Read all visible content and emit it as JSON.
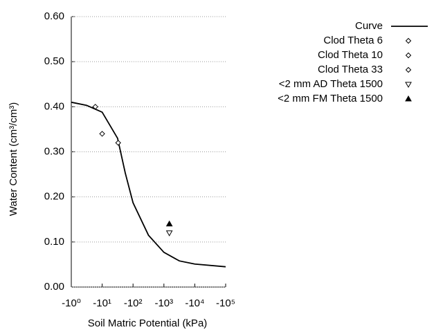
{
  "chart_data": {
    "type": "line",
    "xlabel": "Soil Matric Potential (kPa)",
    "ylabel": "Water Content (cm³/cm³)",
    "xscale": "log",
    "xlim": [
      -1,
      -100000
    ],
    "xticks": [
      {
        "value": -1,
        "label": "-10⁰"
      },
      {
        "value": -10,
        "label": "-10¹"
      },
      {
        "value": -100,
        "label": "-10²"
      },
      {
        "value": -1000,
        "label": "-10³"
      },
      {
        "value": -10000,
        "label": "-10⁴"
      },
      {
        "value": -100000,
        "label": "-10⁵"
      }
    ],
    "ylim": [
      0,
      0.6
    ],
    "yticks": [
      {
        "value": 0,
        "label": "0.00"
      },
      {
        "value": 0.1,
        "label": "0.10"
      },
      {
        "value": 0.2,
        "label": "0.20"
      },
      {
        "value": 0.3,
        "label": "0.30"
      },
      {
        "value": 0.4,
        "label": "0.40"
      },
      {
        "value": 0.5,
        "label": "0.50"
      },
      {
        "value": 0.6,
        "label": "0.60"
      }
    ],
    "grid": true,
    "legend": "outside-right",
    "series": [
      {
        "name": "Curve",
        "color": "#000000",
        "marker": "line",
        "x": [
          -1,
          -3.16,
          -10,
          -31.6,
          -56,
          -100,
          -316,
          -1000,
          -3162,
          -10000,
          -100000
        ],
        "values": [
          0.41,
          0.403,
          0.388,
          0.33,
          0.253,
          0.187,
          0.115,
          0.077,
          0.058,
          0.051,
          0.045
        ]
      },
      {
        "name": "Clod Theta 6",
        "color": "#000000",
        "marker": "diamond",
        "x": [
          -6
        ],
        "values": [
          0.4
        ]
      },
      {
        "name": "Clod Theta 10",
        "color": "#000000",
        "marker": "diamond",
        "x": [
          -10
        ],
        "values": [
          0.34
        ]
      },
      {
        "name": "Clod Theta 33",
        "color": "#000000",
        "marker": "diamond",
        "x": [
          -33
        ],
        "values": [
          0.32
        ]
      },
      {
        "name": "<2 mm AD Theta 1500",
        "color": "#000000",
        "marker": "triangle-down",
        "x": [
          -1500
        ],
        "values": [
          0.12
        ]
      },
      {
        "name": "<2 mm FM Theta 1500",
        "color": "#000000",
        "marker": "triangle-up-filled",
        "x": [
          -1500
        ],
        "values": [
          0.14
        ]
      }
    ]
  }
}
